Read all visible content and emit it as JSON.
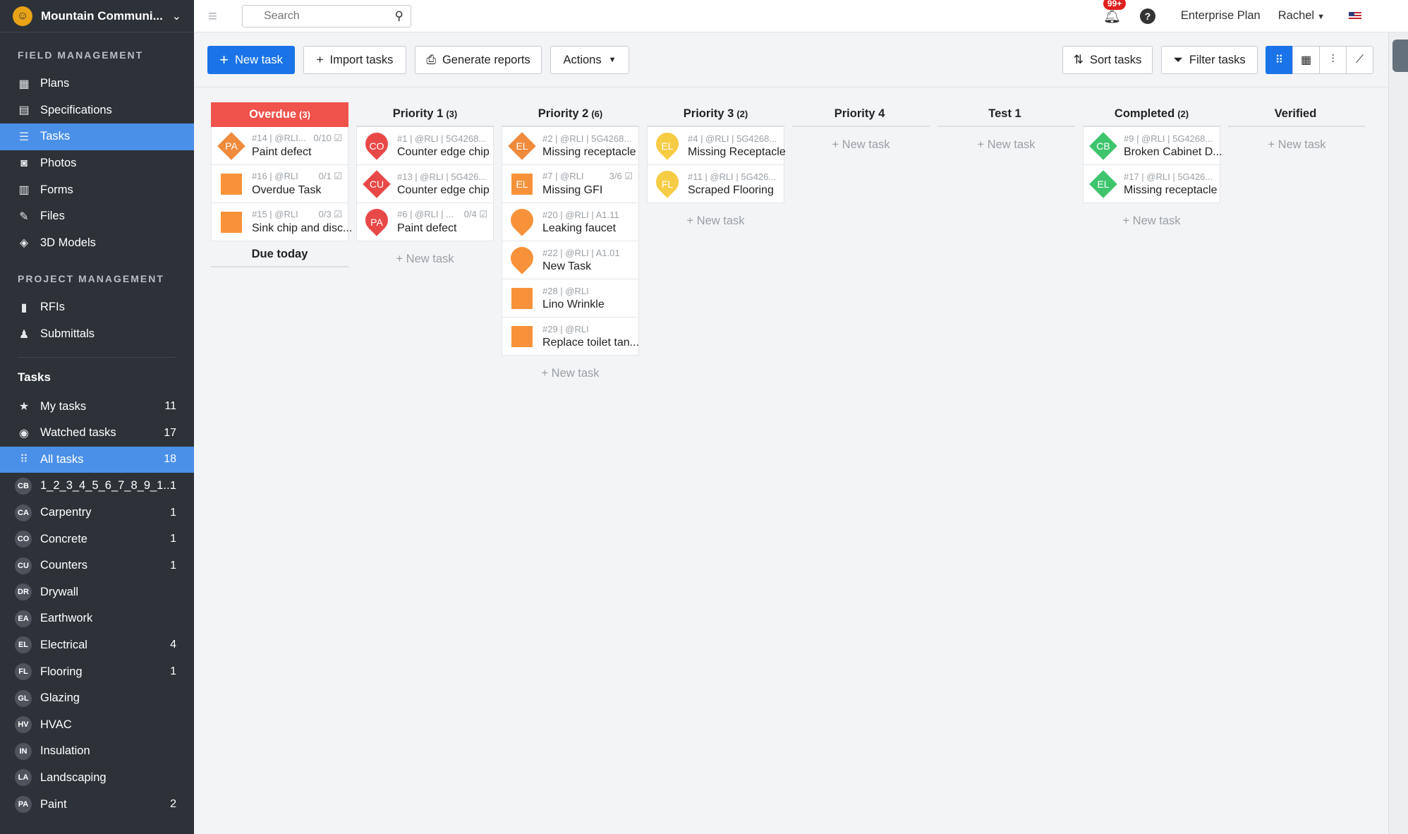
{
  "sidebar": {
    "project_name": "Mountain Communi...",
    "sections": [
      {
        "title": "FIELD MANAGEMENT",
        "items": [
          {
            "label": "Plans",
            "icon": "plans-icon"
          },
          {
            "label": "Specifications",
            "icon": "specifications-icon"
          },
          {
            "label": "Tasks",
            "icon": "tasks-icon",
            "active": true
          },
          {
            "label": "Photos",
            "icon": "camera-icon"
          },
          {
            "label": "Forms",
            "icon": "clipboard-icon"
          },
          {
            "label": "Files",
            "icon": "paperclip-icon"
          },
          {
            "label": "3D Models",
            "icon": "cube-icon"
          }
        ]
      },
      {
        "title": "PROJECT MANAGEMENT",
        "items": [
          {
            "label": "RFIs",
            "icon": "rfi-icon"
          },
          {
            "label": "Submittals",
            "icon": "submittals-icon"
          }
        ]
      }
    ],
    "tasks_title": "Tasks",
    "task_filters": [
      {
        "label": "My tasks",
        "count": "11",
        "icon": "star-icon"
      },
      {
        "label": "Watched tasks",
        "count": "17",
        "icon": "eye-icon"
      },
      {
        "label": "All tasks",
        "count": "18",
        "icon": "grid-icon",
        "active": true
      }
    ],
    "categories": [
      {
        "abbr": "CB",
        "label": "1_2_3_4_5_6_7_8_9_1...",
        "count": "1"
      },
      {
        "abbr": "CA",
        "label": "Carpentry",
        "count": "1"
      },
      {
        "abbr": "CO",
        "label": "Concrete",
        "count": "1"
      },
      {
        "abbr": "CU",
        "label": "Counters",
        "count": "1"
      },
      {
        "abbr": "DR",
        "label": "Drywall",
        "count": ""
      },
      {
        "abbr": "EA",
        "label": "Earthwork",
        "count": ""
      },
      {
        "abbr": "EL",
        "label": "Electrical",
        "count": "4"
      },
      {
        "abbr": "FL",
        "label": "Flooring",
        "count": "1"
      },
      {
        "abbr": "GL",
        "label": "Glazing",
        "count": ""
      },
      {
        "abbr": "HV",
        "label": "HVAC",
        "count": ""
      },
      {
        "abbr": "IN",
        "label": "Insulation",
        "count": ""
      },
      {
        "abbr": "LA",
        "label": "Landscaping",
        "count": ""
      },
      {
        "abbr": "PA",
        "label": "Paint",
        "count": "2"
      }
    ]
  },
  "topbar": {
    "search_placeholder": "Search",
    "notifications_badge": "99+",
    "plan": "Enterprise Plan",
    "user": "Rachel"
  },
  "toolbar": {
    "new_task": "New task",
    "import_tasks": "Import tasks",
    "generate_reports": "Generate reports",
    "actions": "Actions",
    "sort_tasks": "Sort tasks",
    "filter_tasks": "Filter tasks"
  },
  "board": {
    "new_task_label": "+ New task",
    "columns": [
      {
        "name": "Overdue",
        "count": "(3)",
        "style": "overdue",
        "cards": [
          {
            "meta": "#14 | @RLI...",
            "check": "0/10",
            "title": "Paint defect",
            "shape": "diamond",
            "color": "#f08a3c",
            "abbr": "PA"
          },
          {
            "meta": "#16 | @RLI",
            "check": "0/1",
            "title": "Overdue Task",
            "shape": "square",
            "color": "#f7923a",
            "abbr": ""
          },
          {
            "meta": "#15 | @RLI",
            "check": "0/3",
            "title": "Sink chip and disc...",
            "shape": "square",
            "color": "#f7923a",
            "abbr": ""
          }
        ],
        "subheader": "Due today"
      },
      {
        "name": "Priority 1",
        "count": "(3)",
        "cards": [
          {
            "meta": "#1 | @RLI | 5G4268...",
            "check": "",
            "title": "Counter edge chip",
            "shape": "pin",
            "color": "#e84848",
            "abbr": "CO"
          },
          {
            "meta": "#13 | @RLI | 5G426...",
            "check": "",
            "title": "Counter edge chip",
            "shape": "diamond",
            "color": "#e84848",
            "abbr": "CU"
          },
          {
            "meta": "#6 | @RLI | ...",
            "check": "0/4",
            "title": "Paint defect",
            "shape": "pin",
            "color": "#e84848",
            "abbr": "PA"
          }
        ]
      },
      {
        "name": "Priority 2",
        "count": "(6)",
        "cards": [
          {
            "meta": "#2 | @RLI | 5G4268...",
            "check": "",
            "title": "Missing receptacle",
            "shape": "diamond",
            "color": "#f08a3c",
            "abbr": "EL"
          },
          {
            "meta": "#7 | @RLI",
            "check": "3/6",
            "title": "Missing GFI",
            "shape": "square",
            "color": "#f7923a",
            "abbr": "EL"
          },
          {
            "meta": "#20 | @RLI | A1.11",
            "check": "",
            "title": "Leaking faucet",
            "shape": "pin",
            "color": "#f7923a",
            "abbr": ""
          },
          {
            "meta": "#22 | @RLI | A1.01",
            "check": "",
            "title": "New Task",
            "shape": "pin",
            "color": "#f7923a",
            "abbr": ""
          },
          {
            "meta": "#28 | @RLI",
            "check": "",
            "title": "Lino Wrinkle",
            "shape": "square",
            "color": "#f7923a",
            "abbr": ""
          },
          {
            "meta": "#29 | @RLI",
            "check": "",
            "title": "Replace toilet tan...",
            "shape": "square",
            "color": "#f7923a",
            "abbr": ""
          }
        ]
      },
      {
        "name": "Priority 3",
        "count": "(2)",
        "cards": [
          {
            "meta": "#4 | @RLI | 5G4268...",
            "check": "",
            "title": "Missing Receptacle",
            "shape": "pin",
            "color": "#f7cc45",
            "abbr": "EL"
          },
          {
            "meta": "#11 | @RLI | 5G426...",
            "check": "",
            "title": "Scraped Flooring",
            "shape": "pin",
            "color": "#f7cc45",
            "abbr": "FL"
          }
        ]
      },
      {
        "name": "Priority 4",
        "count": "",
        "cards": []
      },
      {
        "name": "Test 1",
        "count": "",
        "cards": []
      },
      {
        "name": "Completed",
        "count": "(2)",
        "cards": [
          {
            "meta": "#9 | @RLI | 5G4268...",
            "check": "",
            "title": "Broken Cabinet D...",
            "shape": "diamond",
            "color": "#3ec46d",
            "abbr": "CB"
          },
          {
            "meta": "#17 | @RLI | 5G426...",
            "check": "",
            "title": "Missing receptacle",
            "shape": "diamond",
            "color": "#3ec46d",
            "abbr": "EL"
          }
        ]
      },
      {
        "name": "Verified",
        "count": "",
        "cards": []
      }
    ]
  }
}
